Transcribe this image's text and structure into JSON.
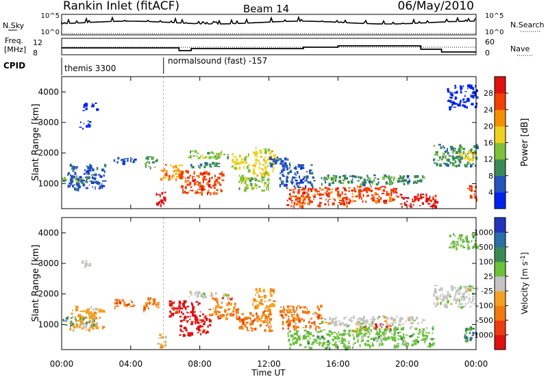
{
  "header": {
    "station": "Rankin Inlet (fitACF)",
    "beam": "Beam 14",
    "date": "06/May/2010"
  },
  "summary": {
    "nsky_label": "N.Sky",
    "nsky_ticks": [
      "10^5",
      "10^0"
    ],
    "nsearch_label": "N.Search",
    "nsearch_ticks": [
      "10^5",
      "10^0"
    ],
    "freq_label": "Freq.",
    "freq_unit": "[MHz]",
    "freq_ticks": [
      "12",
      "8"
    ],
    "nave_label": "Nave",
    "nave_ticks": [
      "60",
      "0"
    ],
    "cpid_label": "CPID",
    "cpid_segments": [
      {
        "start_hour": 0.0,
        "text": "themis 3300"
      },
      {
        "start_hour": 5.9,
        "text": "normalsound (fast) -157"
      }
    ]
  },
  "colors": {
    "power": [
      "#0022ee",
      "#2255bb",
      "#3a8a55",
      "#7fc23a",
      "#f0d020",
      "#f79000",
      "#f24000",
      "#e01010"
    ],
    "velocity": [
      "#2233bb",
      "#2a6fa8",
      "#3a8a55",
      "#6cc23a",
      "#c4c4c4",
      "#f4a020",
      "#f07a10",
      "#ee3a10",
      "#e01010"
    ]
  },
  "chart_data": [
    {
      "type": "heatmap",
      "name": "power-panel",
      "ylabel": "Slant Range [km]",
      "xlabel": "",
      "x_tick_labels": [
        "00:00",
        "04:00",
        "08:00",
        "12:00",
        "16:00",
        "20:00",
        "00:00"
      ],
      "x_ticks_hours": [
        0,
        4,
        8,
        12,
        16,
        20,
        24
      ],
      "xlim_hours": [
        0,
        24
      ],
      "y_ticks": [
        1000,
        2000,
        3000,
        4000
      ],
      "ylim": [
        180,
        4500
      ],
      "colorbar_label": "Power [dB]",
      "colorbar_ticks": [
        "4",
        "8",
        "12",
        "16",
        "20",
        "24",
        "28"
      ],
      "blobs": [
        {
          "h0": 0.0,
          "h1": 1.8,
          "r0": 1050,
          "r1": 1250,
          "lvl": 3
        },
        {
          "h0": 0.3,
          "h1": 2.5,
          "r0": 850,
          "r1": 1650,
          "lvl": 1
        },
        {
          "h0": 1.0,
          "h1": 1.6,
          "r0": 2800,
          "r1": 3100,
          "lvl": 0
        },
        {
          "h0": 1.1,
          "h1": 2.0,
          "r0": 3400,
          "r1": 3650,
          "lvl": 0
        },
        {
          "h0": 3.0,
          "h1": 4.2,
          "r0": 1650,
          "r1": 1900,
          "lvl": 1
        },
        {
          "h0": 4.7,
          "h1": 5.6,
          "r0": 1550,
          "r1": 1900,
          "lvl": 2
        },
        {
          "h0": 5.4,
          "h1": 6.0,
          "r0": 250,
          "r1": 750,
          "lvl": 7
        },
        {
          "h0": 5.7,
          "h1": 7.0,
          "r0": 1150,
          "r1": 1650,
          "lvl": 5
        },
        {
          "h0": 6.8,
          "h1": 9.3,
          "r0": 700,
          "r1": 1450,
          "lvl": 6
        },
        {
          "h0": 7.3,
          "h1": 9.6,
          "r0": 1850,
          "r1": 2100,
          "lvl": 3
        },
        {
          "h0": 7.4,
          "h1": 9.2,
          "r0": 1550,
          "r1": 1750,
          "lvl": 2
        },
        {
          "h0": 9.8,
          "h1": 10.8,
          "r0": 1450,
          "r1": 2000,
          "lvl": 4
        },
        {
          "h0": 10.2,
          "h1": 12.0,
          "r0": 800,
          "r1": 1300,
          "lvl": 3
        },
        {
          "h0": 11.0,
          "h1": 12.3,
          "r0": 1300,
          "r1": 2200,
          "lvl": 4
        },
        {
          "h0": 12.0,
          "h1": 13.2,
          "r0": 1600,
          "r1": 1900,
          "lvl": 1
        },
        {
          "h0": 12.6,
          "h1": 14.6,
          "r0": 900,
          "r1": 1650,
          "lvl": 1
        },
        {
          "h0": 13.0,
          "h1": 16.5,
          "r0": 280,
          "r1": 900,
          "lvl": 6
        },
        {
          "h0": 16.5,
          "h1": 19.5,
          "r0": 400,
          "r1": 950,
          "lvl": 6
        },
        {
          "h0": 19.5,
          "h1": 21.7,
          "r0": 250,
          "r1": 700,
          "lvl": 7
        },
        {
          "h0": 15.0,
          "h1": 21.0,
          "r0": 1000,
          "r1": 1300,
          "lvl": 2
        },
        {
          "h0": 21.5,
          "h1": 24.0,
          "r0": 1600,
          "r1": 2300,
          "lvl": 2
        },
        {
          "h0": 22.8,
          "h1": 23.9,
          "r0": 1800,
          "r1": 2100,
          "lvl": 4
        },
        {
          "h0": 22.3,
          "h1": 24.0,
          "r0": 3500,
          "r1": 4250,
          "lvl": 0
        },
        {
          "h0": 23.4,
          "h1": 24.0,
          "r0": 500,
          "r1": 950,
          "lvl": 6
        }
      ]
    },
    {
      "type": "heatmap",
      "name": "velocity-panel",
      "ylabel": "Slant Range [km]",
      "xlabel": "Time UT",
      "x_tick_labels": [
        "00:00",
        "04:00",
        "08:00",
        "12:00",
        "16:00",
        "20:00",
        "00:00"
      ],
      "x_ticks_hours": [
        0,
        4,
        8,
        12,
        16,
        20,
        24
      ],
      "xlim_hours": [
        0,
        24
      ],
      "y_ticks": [
        1000,
        2000,
        3000,
        4000
      ],
      "ylim": [
        180,
        4500
      ],
      "colorbar_label": "Velocity [m s",
      "colorbar_label_sup": "-1",
      "colorbar_label_tail": "]",
      "colorbar_ticks": [
        "1000",
        "500",
        "100",
        "25",
        "-25",
        "-100",
        "-500",
        "-1000"
      ],
      "blobs": [
        {
          "h0": 0.0,
          "h1": 1.8,
          "r0": 1000,
          "r1": 1300,
          "lvl": 6
        },
        {
          "h0": 0.4,
          "h1": 2.4,
          "r0": 850,
          "r1": 1650,
          "lvl": 3
        },
        {
          "h0": 1.0,
          "h1": 1.6,
          "r0": 2850,
          "r1": 3100,
          "lvl": 4
        },
        {
          "h0": 3.0,
          "h1": 4.2,
          "r0": 1600,
          "r1": 1900,
          "lvl": 2
        },
        {
          "h0": 4.7,
          "h1": 5.6,
          "r0": 1500,
          "r1": 1900,
          "lvl": 2
        },
        {
          "h0": 5.5,
          "h1": 6.0,
          "r0": 250,
          "r1": 700,
          "lvl": 3
        },
        {
          "h0": 6.2,
          "h1": 8.0,
          "r0": 1300,
          "r1": 1800,
          "lvl": 0
        },
        {
          "h0": 6.8,
          "h1": 8.6,
          "r0": 650,
          "r1": 1450,
          "lvl": 0
        },
        {
          "h0": 7.3,
          "h1": 9.6,
          "r0": 1900,
          "r1": 2100,
          "lvl": 4
        },
        {
          "h0": 8.5,
          "h1": 10.2,
          "r0": 1200,
          "r1": 1900,
          "lvl": 2
        },
        {
          "h0": 10.0,
          "h1": 12.2,
          "r0": 800,
          "r1": 1500,
          "lvl": 2
        },
        {
          "h0": 11.0,
          "h1": 12.3,
          "r0": 1500,
          "r1": 2200,
          "lvl": 3
        },
        {
          "h0": 12.6,
          "h1": 15.0,
          "r0": 900,
          "r1": 1650,
          "lvl": 2
        },
        {
          "h0": 13.0,
          "h1": 17.0,
          "r0": 250,
          "r1": 850,
          "lvl": 5
        },
        {
          "h0": 16.5,
          "h1": 17.8,
          "r0": 800,
          "r1": 1000,
          "lvl": 3
        },
        {
          "h0": 17.0,
          "h1": 21.5,
          "r0": 300,
          "r1": 950,
          "lvl": 5
        },
        {
          "h0": 18.0,
          "h1": 19.0,
          "r0": 850,
          "r1": 1050,
          "lvl": 0
        },
        {
          "h0": 15.0,
          "h1": 21.0,
          "r0": 1000,
          "r1": 1300,
          "lvl": 4
        },
        {
          "h0": 21.5,
          "h1": 24.0,
          "r0": 1600,
          "r1": 2300,
          "lvl": 4
        },
        {
          "h0": 22.4,
          "h1": 24.0,
          "r0": 3500,
          "r1": 4000,
          "lvl": 5
        },
        {
          "h0": 23.3,
          "h1": 24.0,
          "r0": 450,
          "r1": 950,
          "lvl": 6
        }
      ]
    }
  ]
}
